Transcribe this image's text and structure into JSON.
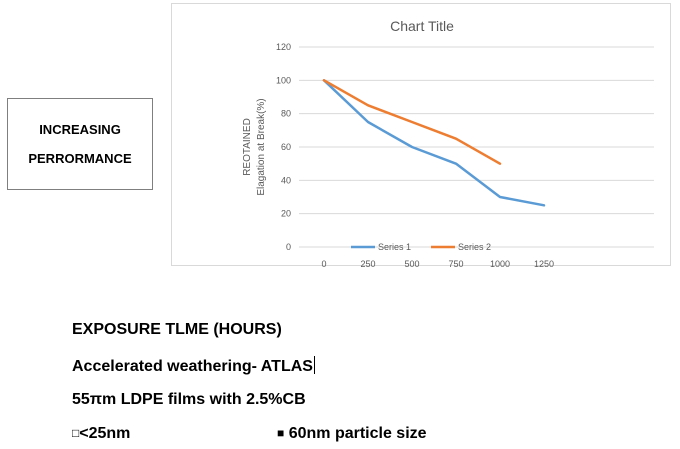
{
  "side_box": {
    "line1": "INCREASING",
    "line2": "PERRORMANCE"
  },
  "captions": {
    "line1": "EXPOSURE TLME (HOURS)",
    "line2": "Accelerated weathering- ATLAS",
    "line3": "55πm LDPE films with 2.5%CB"
  },
  "markers": {
    "open_symbol": "□",
    "open_label": "<25nm",
    "filled_symbol": "■",
    "filled_label": " 60nm particle size"
  },
  "chart_data": {
    "type": "line",
    "title": "Chart Title",
    "ylabel_lines": [
      "REOTAINED",
      "Elagation at Break(%)"
    ],
    "xlabel": "",
    "x": [
      0,
      250,
      500,
      750,
      1000,
      1250
    ],
    "ylim": [
      0,
      120
    ],
    "yticks": [
      0,
      20,
      40,
      60,
      80,
      100,
      120
    ],
    "grid": true,
    "legend_position": "bottom",
    "colors": {
      "series1": "#5b9bd5",
      "series2": "#ed7d31",
      "grid": "#d9d9d9",
      "text": "#595959"
    },
    "series": [
      {
        "name": "Series 1",
        "values": [
          100,
          75,
          60,
          50,
          30,
          25
        ]
      },
      {
        "name": "Series 2",
        "values": [
          100,
          85,
          75,
          65,
          50,
          null
        ]
      }
    ]
  }
}
